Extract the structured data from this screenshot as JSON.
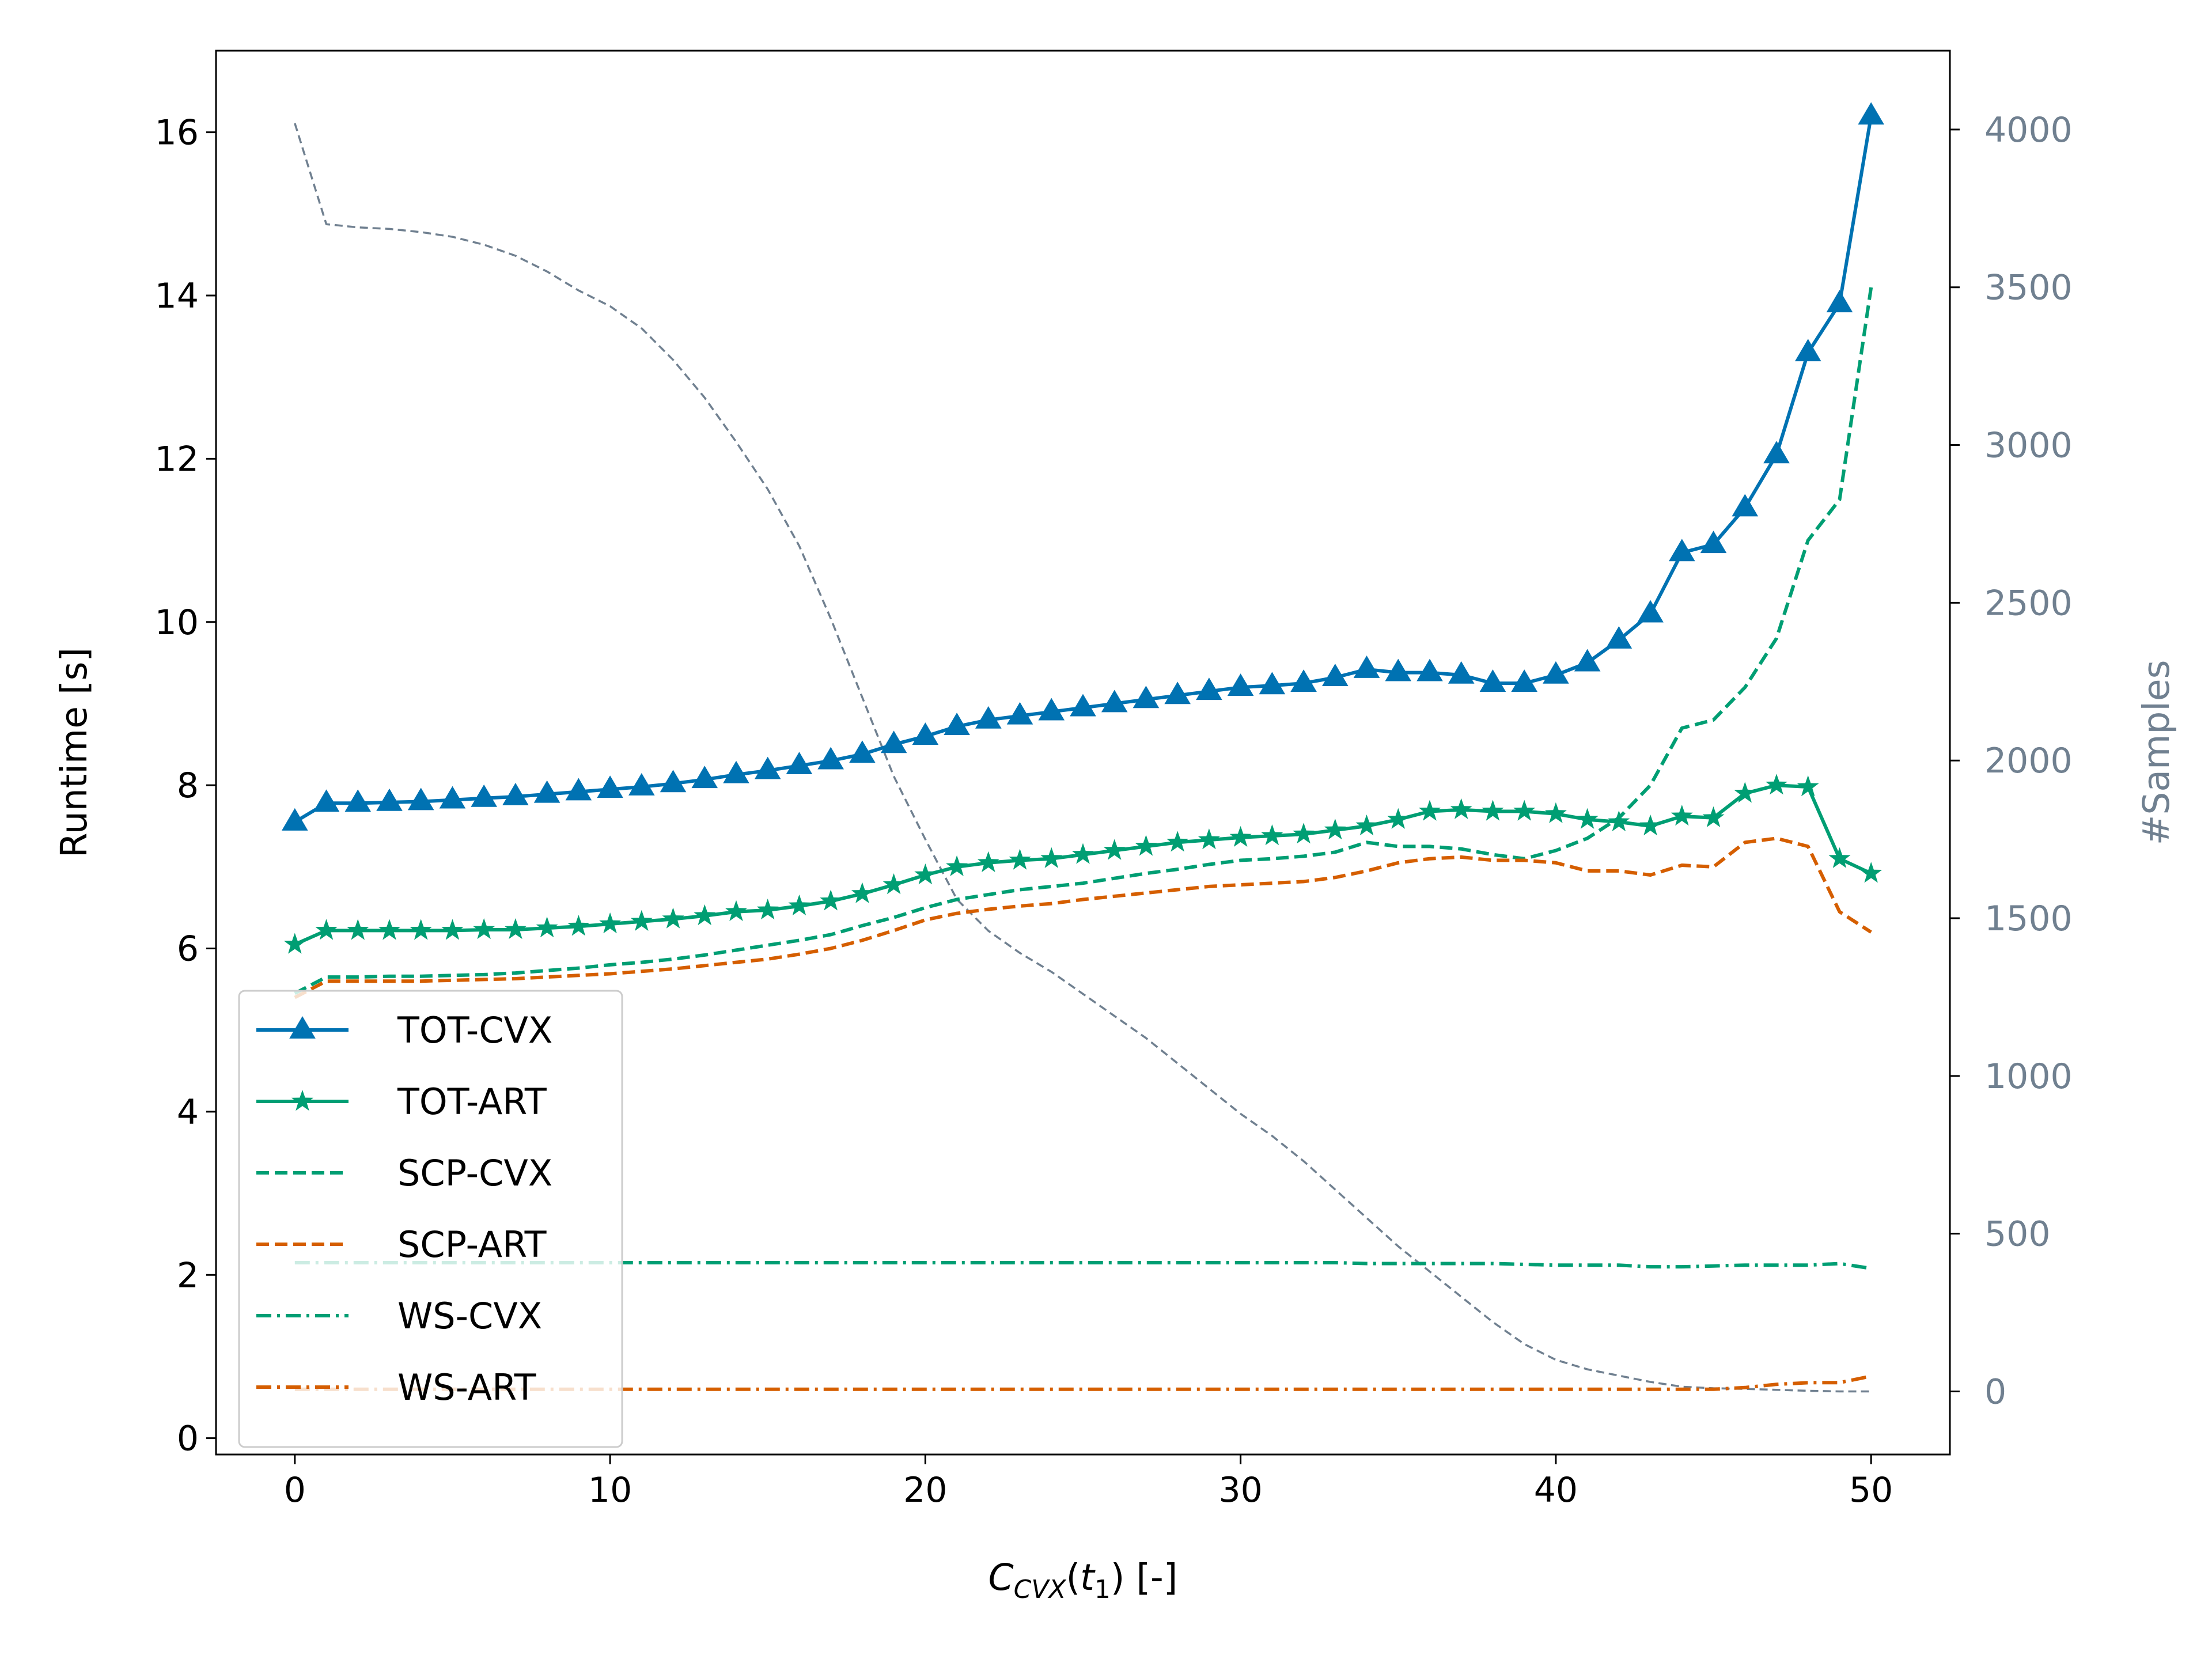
{
  "chart_data": {
    "type": "line",
    "xlabel": "C_{CVX}(t_1) [-]",
    "xlabel_parts": {
      "main": "C",
      "sub": "CVX",
      "rest1": "(",
      "var": "t",
      "varsub": "1",
      "rest2": ") [-]"
    },
    "ylabel": "Runtime [s]",
    "y2label": "#Samples",
    "xlim": [
      -2.5,
      52.5
    ],
    "ylim": [
      -0.2,
      17.0
    ],
    "y2lim": [
      -200,
      4250
    ],
    "x_ticks": [
      "0",
      "10",
      "20",
      "30",
      "40",
      "50"
    ],
    "y_ticks": [
      "0",
      "2",
      "4",
      "6",
      "8",
      "10",
      "12",
      "14",
      "16"
    ],
    "y2_ticks": [
      "0",
      "500",
      "1000",
      "1500",
      "2000",
      "2500",
      "3000",
      "3500",
      "4000"
    ],
    "legend_location": "lower-left",
    "x": [
      0,
      1,
      2,
      3,
      4,
      5,
      6,
      7,
      8,
      9,
      10,
      11,
      12,
      13,
      14,
      15,
      16,
      17,
      18,
      19,
      20,
      21,
      22,
      23,
      24,
      25,
      26,
      27,
      28,
      29,
      30,
      31,
      32,
      33,
      34,
      35,
      36,
      37,
      38,
      39,
      40,
      41,
      42,
      43,
      44,
      45,
      46,
      47,
      48,
      49,
      50
    ],
    "series": [
      {
        "name": "TOT-CVX",
        "axis": "left",
        "color": "#0072B2",
        "style": "solid",
        "marker": "triangle",
        "values": [
          7.55,
          7.78,
          7.78,
          7.79,
          7.8,
          7.82,
          7.84,
          7.86,
          7.89,
          7.92,
          7.95,
          7.98,
          8.02,
          8.07,
          8.13,
          8.18,
          8.24,
          8.3,
          8.38,
          8.5,
          8.6,
          8.72,
          8.8,
          8.85,
          8.9,
          8.95,
          9.0,
          9.05,
          9.1,
          9.15,
          9.2,
          9.22,
          9.25,
          9.32,
          9.42,
          9.38,
          9.38,
          9.35,
          9.25,
          9.25,
          9.35,
          9.5,
          9.78,
          10.1,
          10.85,
          10.95,
          11.4,
          12.05,
          13.3,
          13.9,
          16.2
        ]
      },
      {
        "name": "TOT-ART",
        "axis": "left",
        "color": "#009E73",
        "style": "solid",
        "marker": "star",
        "values": [
          6.05,
          6.22,
          6.22,
          6.22,
          6.22,
          6.22,
          6.23,
          6.23,
          6.25,
          6.27,
          6.3,
          6.33,
          6.36,
          6.4,
          6.45,
          6.47,
          6.52,
          6.58,
          6.67,
          6.78,
          6.9,
          7.0,
          7.05,
          7.08,
          7.1,
          7.15,
          7.2,
          7.25,
          7.3,
          7.33,
          7.36,
          7.38,
          7.4,
          7.45,
          7.5,
          7.58,
          7.68,
          7.7,
          7.68,
          7.68,
          7.65,
          7.58,
          7.55,
          7.5,
          7.62,
          7.6,
          7.9,
          8.0,
          7.98,
          7.1,
          6.92
        ]
      },
      {
        "name": "SCP-CVX",
        "axis": "left",
        "color": "#009E73",
        "style": "dashed",
        "marker": "none",
        "values": [
          5.45,
          5.65,
          5.65,
          5.66,
          5.66,
          5.67,
          5.68,
          5.7,
          5.73,
          5.76,
          5.8,
          5.83,
          5.87,
          5.92,
          5.98,
          6.04,
          6.1,
          6.17,
          6.28,
          6.38,
          6.5,
          6.6,
          6.66,
          6.72,
          6.76,
          6.8,
          6.86,
          6.92,
          6.97,
          7.03,
          7.08,
          7.1,
          7.13,
          7.18,
          7.3,
          7.25,
          7.25,
          7.22,
          7.15,
          7.1,
          7.2,
          7.35,
          7.6,
          8.0,
          8.7,
          8.8,
          9.2,
          9.8,
          11.0,
          11.5,
          14.1
        ]
      },
      {
        "name": "SCP-ART",
        "axis": "left",
        "color": "#D55E00",
        "style": "dashed",
        "marker": "none",
        "values": [
          5.4,
          5.6,
          5.6,
          5.6,
          5.6,
          5.61,
          5.62,
          5.63,
          5.65,
          5.67,
          5.69,
          5.72,
          5.75,
          5.79,
          5.83,
          5.87,
          5.93,
          6.0,
          6.1,
          6.22,
          6.35,
          6.43,
          6.48,
          6.52,
          6.55,
          6.6,
          6.64,
          6.68,
          6.72,
          6.76,
          6.78,
          6.8,
          6.82,
          6.87,
          6.95,
          7.05,
          7.1,
          7.12,
          7.08,
          7.08,
          7.05,
          6.95,
          6.95,
          6.9,
          7.02,
          7.0,
          7.3,
          7.35,
          7.25,
          6.45,
          6.2
        ]
      },
      {
        "name": "WS-CVX",
        "axis": "left",
        "color": "#009E73",
        "style": "dashdot",
        "marker": "none",
        "values": [
          2.15,
          2.15,
          2.15,
          2.15,
          2.15,
          2.15,
          2.15,
          2.15,
          2.15,
          2.15,
          2.15,
          2.15,
          2.15,
          2.15,
          2.15,
          2.15,
          2.15,
          2.15,
          2.15,
          2.15,
          2.15,
          2.15,
          2.15,
          2.15,
          2.15,
          2.15,
          2.15,
          2.15,
          2.15,
          2.15,
          2.15,
          2.15,
          2.15,
          2.15,
          2.14,
          2.14,
          2.14,
          2.14,
          2.14,
          2.13,
          2.12,
          2.12,
          2.12,
          2.1,
          2.1,
          2.11,
          2.12,
          2.12,
          2.12,
          2.14,
          2.08
        ]
      },
      {
        "name": "WS-ART",
        "axis": "left",
        "color": "#D55E00",
        "style": "dashdot",
        "marker": "none",
        "values": [
          0.6,
          0.6,
          0.6,
          0.6,
          0.6,
          0.6,
          0.6,
          0.6,
          0.6,
          0.6,
          0.6,
          0.6,
          0.6,
          0.6,
          0.6,
          0.6,
          0.6,
          0.6,
          0.6,
          0.6,
          0.6,
          0.6,
          0.6,
          0.6,
          0.6,
          0.6,
          0.6,
          0.6,
          0.6,
          0.6,
          0.6,
          0.6,
          0.6,
          0.6,
          0.6,
          0.6,
          0.6,
          0.6,
          0.6,
          0.6,
          0.6,
          0.6,
          0.6,
          0.6,
          0.6,
          0.6,
          0.62,
          0.66,
          0.68,
          0.68,
          0.76
        ]
      },
      {
        "axis": "right",
        "color": "#708090",
        "style": "dashed-thin",
        "marker": "none",
        "values": [
          4020,
          3700,
          3690,
          3685,
          3675,
          3660,
          3635,
          3600,
          3550,
          3490,
          3440,
          3370,
          3270,
          3150,
          3010,
          2860,
          2680,
          2450,
          2200,
          1950,
          1750,
          1560,
          1460,
          1390,
          1330,
          1260,
          1190,
          1120,
          1040,
          960,
          880,
          810,
          730,
          640,
          550,
          460,
          380,
          300,
          220,
          150,
          100,
          70,
          50,
          30,
          15,
          10,
          8,
          5,
          2,
          0,
          0
        ]
      }
    ]
  }
}
